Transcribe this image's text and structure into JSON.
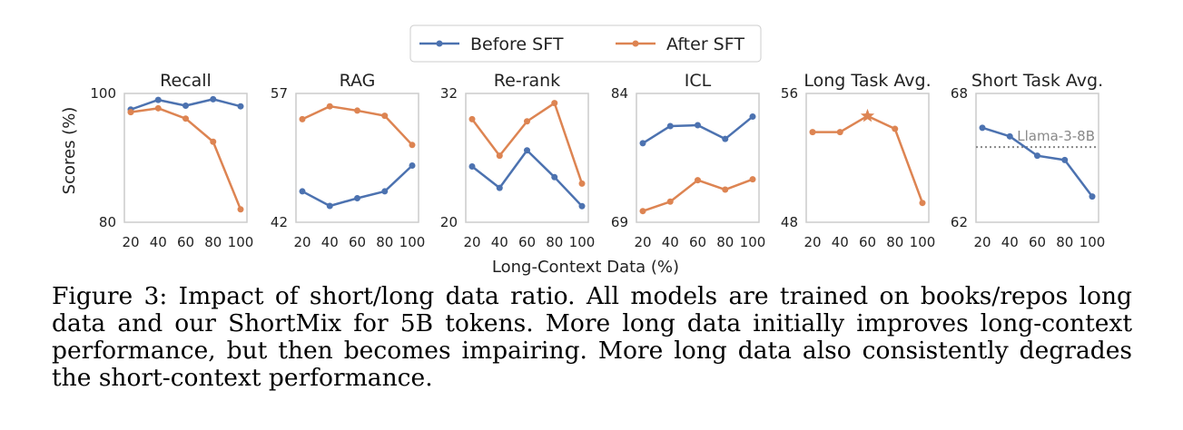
{
  "colors": {
    "before": "#4c72b0",
    "after": "#dd8452",
    "reference": "#888888",
    "frame": "#cccccc"
  },
  "legend": {
    "items": [
      "Before SFT",
      "After SFT"
    ]
  },
  "xlabel": "Long-Context Data (%)",
  "ylabel": "Scores (%)",
  "caption": "Figure 3: Impact of short/long data ratio. All models are trained on books/repos long data and our ShortMix for 5B tokens. More long data initially improves long-context performance, but then becomes impairing. More long data also consistently degrades the short-context performance.",
  "chart_data": [
    {
      "type": "line",
      "title": "Recall",
      "x": [
        20,
        40,
        60,
        80,
        100
      ],
      "ylim": [
        80,
        100
      ],
      "yticks": [
        80,
        100
      ],
      "series": [
        {
          "name": "Before SFT",
          "values": [
            97.5,
            99.0,
            98.1,
            99.1,
            98.0
          ]
        },
        {
          "name": "After SFT",
          "values": [
            97.1,
            97.7,
            96.1,
            92.5,
            82.0
          ]
        }
      ]
    },
    {
      "type": "line",
      "title": "RAG",
      "x": [
        20,
        40,
        60,
        80,
        100
      ],
      "ylim": [
        42,
        57
      ],
      "yticks": [
        42,
        57
      ],
      "series": [
        {
          "name": "Before SFT",
          "values": [
            45.6,
            43.9,
            44.8,
            45.6,
            48.6
          ]
        },
        {
          "name": "After SFT",
          "values": [
            54.0,
            55.5,
            55.0,
            54.4,
            51.0
          ]
        }
      ]
    },
    {
      "type": "line",
      "title": "Re-rank",
      "x": [
        20,
        40,
        60,
        80,
        100
      ],
      "ylim": [
        20,
        32
      ],
      "yticks": [
        20,
        32
      ],
      "series": [
        {
          "name": "Before SFT",
          "values": [
            25.2,
            23.2,
            26.7,
            24.2,
            21.5
          ]
        },
        {
          "name": "After SFT",
          "values": [
            29.6,
            26.2,
            29.4,
            31.1,
            23.6
          ]
        }
      ]
    },
    {
      "type": "line",
      "title": "ICL",
      "x": [
        20,
        40,
        60,
        80,
        100
      ],
      "ylim": [
        69,
        84
      ],
      "yticks": [
        69,
        84
      ],
      "series": [
        {
          "name": "Before SFT",
          "values": [
            78.2,
            80.2,
            80.3,
            78.7,
            81.3
          ]
        },
        {
          "name": "After SFT",
          "values": [
            70.3,
            71.4,
            73.9,
            72.8,
            74.0
          ]
        }
      ]
    },
    {
      "type": "line",
      "title": "Long Task Avg.",
      "x": [
        20,
        40,
        60,
        80,
        100
      ],
      "ylim": [
        48,
        56
      ],
      "yticks": [
        48,
        56
      ],
      "series": [
        {
          "name": "After SFT",
          "values": [
            53.6,
            53.6,
            54.6,
            53.8,
            49.2
          ],
          "star_index": 2
        }
      ]
    },
    {
      "type": "line",
      "title": "Short Task Avg.",
      "x": [
        20,
        40,
        60,
        80,
        100
      ],
      "ylim": [
        62,
        68
      ],
      "yticks": [
        62,
        68
      ],
      "series": [
        {
          "name": "Before SFT",
          "values": [
            66.4,
            66.0,
            65.1,
            64.9,
            63.2
          ]
        }
      ],
      "reference": {
        "label": "Llama-3-8B",
        "value": 65.5
      }
    }
  ]
}
